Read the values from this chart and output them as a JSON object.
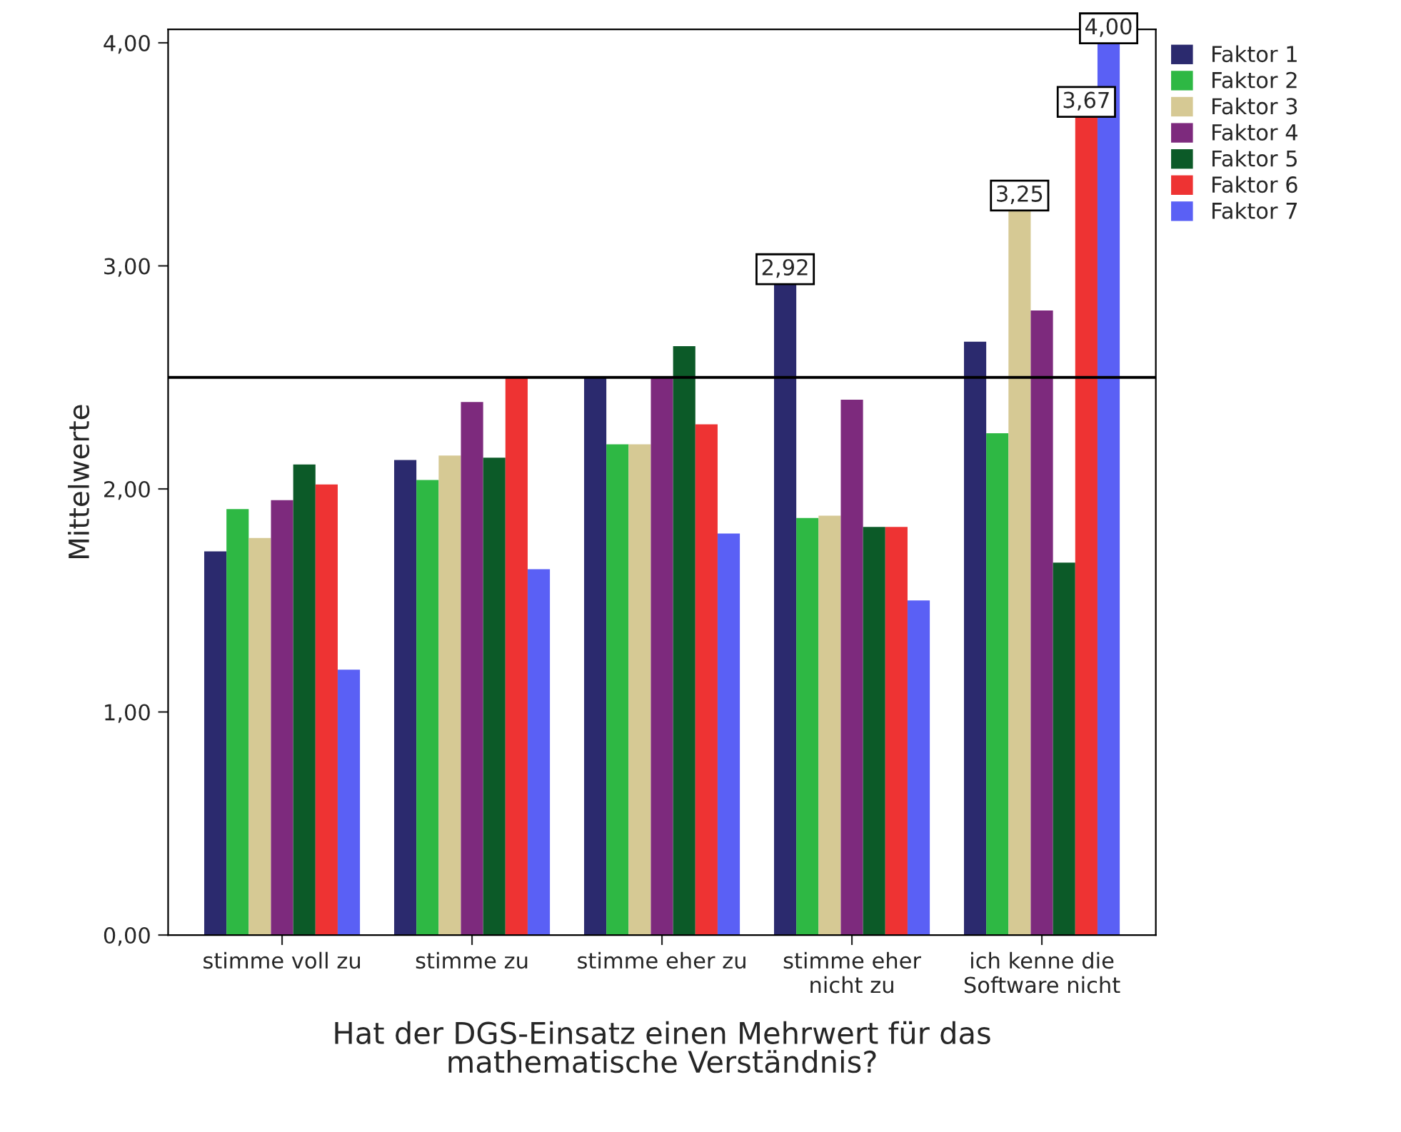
{
  "chart_data": {
    "type": "bar",
    "xlabel": "Hat der DGS-Einsatz einen Mehrwert für das\nmathematische Verständnis?",
    "ylabel": "Mittelwerte",
    "categories": [
      "stimme voll zu",
      "stimme zu",
      "stimme eher zu",
      "stimme eher\nnicht zu",
      "ich kenne die\nSoftware nicht"
    ],
    "series": [
      {
        "name": "Faktor 1",
        "color": "#2b2a6e",
        "values": [
          1.72,
          2.13,
          2.5,
          2.92,
          2.66
        ],
        "value_labels": [
          null,
          null,
          null,
          "2,92",
          null
        ]
      },
      {
        "name": "Faktor 2",
        "color": "#2eb844",
        "values": [
          1.91,
          2.04,
          2.2,
          1.87,
          2.25
        ]
      },
      {
        "name": "Faktor 3",
        "color": "#d6c994",
        "values": [
          1.78,
          2.15,
          2.2,
          1.88,
          3.25
        ],
        "value_labels": [
          null,
          null,
          null,
          null,
          "3,25"
        ]
      },
      {
        "name": "Faktor 4",
        "color": "#7d2a7d",
        "values": [
          1.95,
          2.39,
          2.5,
          2.4,
          2.8
        ]
      },
      {
        "name": "Faktor 5",
        "color": "#0c5a28",
        "values": [
          2.11,
          2.14,
          2.64,
          1.83,
          1.67
        ]
      },
      {
        "name": "Faktor 6",
        "color": "#ee3333",
        "values": [
          2.02,
          2.5,
          2.29,
          1.83,
          3.67
        ],
        "value_labels": [
          null,
          null,
          null,
          null,
          "3,67"
        ]
      },
      {
        "name": "Faktor 7",
        "color": "#5a60f5",
        "values": [
          1.19,
          1.64,
          1.8,
          1.5,
          4.0
        ],
        "value_labels": [
          null,
          null,
          null,
          null,
          "4,00"
        ]
      }
    ],
    "ylim": [
      0,
      4.06
    ],
    "yticks": [
      {
        "value": 0,
        "label": "0,00"
      },
      {
        "value": 1,
        "label": "1,00"
      },
      {
        "value": 2,
        "label": "2,00"
      },
      {
        "value": 3,
        "label": "3,00"
      },
      {
        "value": 4,
        "label": "4,00"
      }
    ],
    "ref_lines": [
      {
        "axis": "y",
        "value": 2.5,
        "label": null,
        "color": "#000000"
      }
    ],
    "grid": false,
    "legend": "top right"
  }
}
